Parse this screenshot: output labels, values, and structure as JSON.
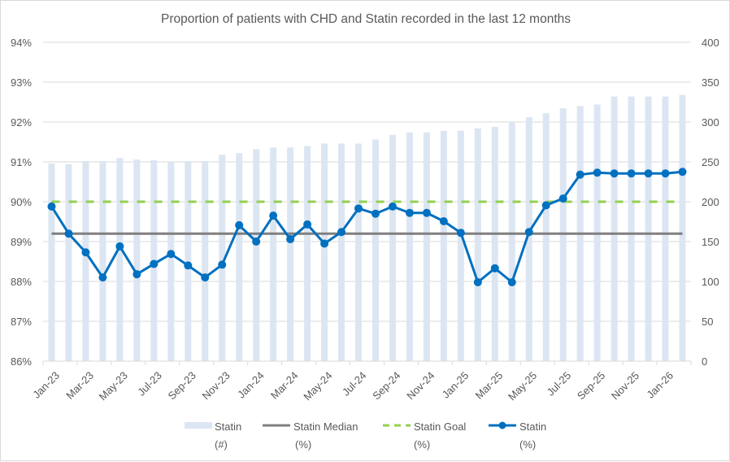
{
  "chart_data": {
    "type": "bar+line",
    "title": "Proportion of patients with CHD and Statin recorded in the last 12 months",
    "xlabel": "",
    "ylabel_left": "",
    "ylabel_right": "",
    "categories": [
      "Jan-23",
      "Feb-23",
      "Mar-23",
      "Apr-23",
      "May-23",
      "Jun-23",
      "Jul-23",
      "Aug-23",
      "Sep-23",
      "Oct-23",
      "Nov-23",
      "Dec-23",
      "Jan-24",
      "Feb-24",
      "Mar-24",
      "Apr-24",
      "May-24",
      "Jun-24",
      "Jul-24",
      "Aug-24",
      "Sep-24",
      "Oct-24",
      "Nov-24",
      "Dec-24",
      "Jan-25",
      "Feb-25",
      "Mar-25",
      "Apr-25",
      "May-25",
      "Jun-25",
      "Jul-25",
      "Aug-25",
      "Sep-25",
      "Oct-25",
      "Nov-25",
      "Dec-25",
      "Jan-26",
      "Feb-26"
    ],
    "x_tick_labels": [
      "Jan-23",
      "Mar-23",
      "May-23",
      "Jul-23",
      "Sep-23",
      "Nov-23",
      "Jan-24",
      "Mar-24",
      "May-24",
      "Jul-24",
      "Sep-24",
      "Nov-24",
      "Jan-25",
      "Mar-25",
      "May-25",
      "Jul-25",
      "Sep-25",
      "Nov-25",
      "Jan-26"
    ],
    "y_left": {
      "min": 86,
      "max": 94,
      "step": 1,
      "tick_labels": [
        "86%",
        "87%",
        "88%",
        "89%",
        "90%",
        "91%",
        "92%",
        "93%",
        "94%"
      ]
    },
    "y_right": {
      "min": 0,
      "max": 400,
      "step": 50,
      "tick_labels": [
        "0",
        "50",
        "100",
        "150",
        "200",
        "250",
        "300",
        "350",
        "400"
      ]
    },
    "grid": true,
    "legend_position": "bottom",
    "series": [
      {
        "name": "Statin (#)",
        "legend_line1": "Statin",
        "legend_line2": "(#)",
        "type": "bar",
        "axis": "right",
        "color": "#dce6f2",
        "values": [
          248,
          247,
          251,
          251,
          255,
          253,
          252,
          250,
          251,
          251,
          259,
          261,
          266,
          268,
          268,
          270,
          273,
          273,
          273,
          278,
          284,
          287,
          287,
          289,
          289,
          292,
          294,
          300,
          306,
          311,
          317,
          320,
          322,
          332,
          332,
          332,
          332,
          334
        ]
      },
      {
        "name": "Statin Median (%)",
        "legend_line1": "Statin Median",
        "legend_line2": "(%)",
        "type": "line",
        "axis": "left",
        "color": "#7f7f7f",
        "style": "solid",
        "value": 89.2
      },
      {
        "name": "Statin Goal (%)",
        "legend_line1": "Statin Goal",
        "legend_line2": "(%)",
        "type": "line",
        "axis": "left",
        "color": "#92d050",
        "style": "dashed",
        "value": 90.0
      },
      {
        "name": "Statin (%)",
        "legend_line1": "Statin",
        "legend_line2": "(%)",
        "type": "line",
        "axis": "left",
        "color": "#0070c0",
        "markers": true,
        "values": [
          89.88,
          89.2,
          88.73,
          88.1,
          88.88,
          88.18,
          88.44,
          88.69,
          88.4,
          88.1,
          88.42,
          89.41,
          89.0,
          89.65,
          89.06,
          89.43,
          88.95,
          89.24,
          89.83,
          89.7,
          89.88,
          89.72,
          89.72,
          89.51,
          89.22,
          87.98,
          88.33,
          87.98,
          89.24,
          89.91,
          90.08,
          90.68,
          90.73,
          90.71,
          90.71,
          90.71,
          90.71,
          90.75
        ]
      }
    ]
  }
}
